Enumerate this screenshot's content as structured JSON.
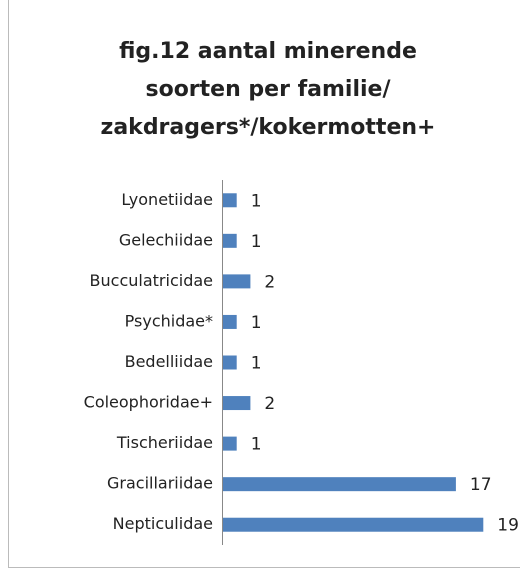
{
  "chart_data": {
    "type": "bar",
    "orientation": "horizontal",
    "title": [
      "fig.12 aantal minerende",
      "soorten per familie/",
      "zakdragers*/kokermotten+"
    ],
    "categories": [
      "Lyonetiidae",
      "Gelechiidae",
      "Bucculatricidae",
      "Psychidae*",
      "Bedelliidae",
      "Coleophoridae+",
      "Tischeriidae",
      "Gracillariidae",
      "Nepticulidae"
    ],
    "values": [
      1,
      1,
      2,
      1,
      1,
      2,
      1,
      17,
      19
    ],
    "color": "#4f81bd",
    "xlim": [
      0,
      20
    ]
  }
}
